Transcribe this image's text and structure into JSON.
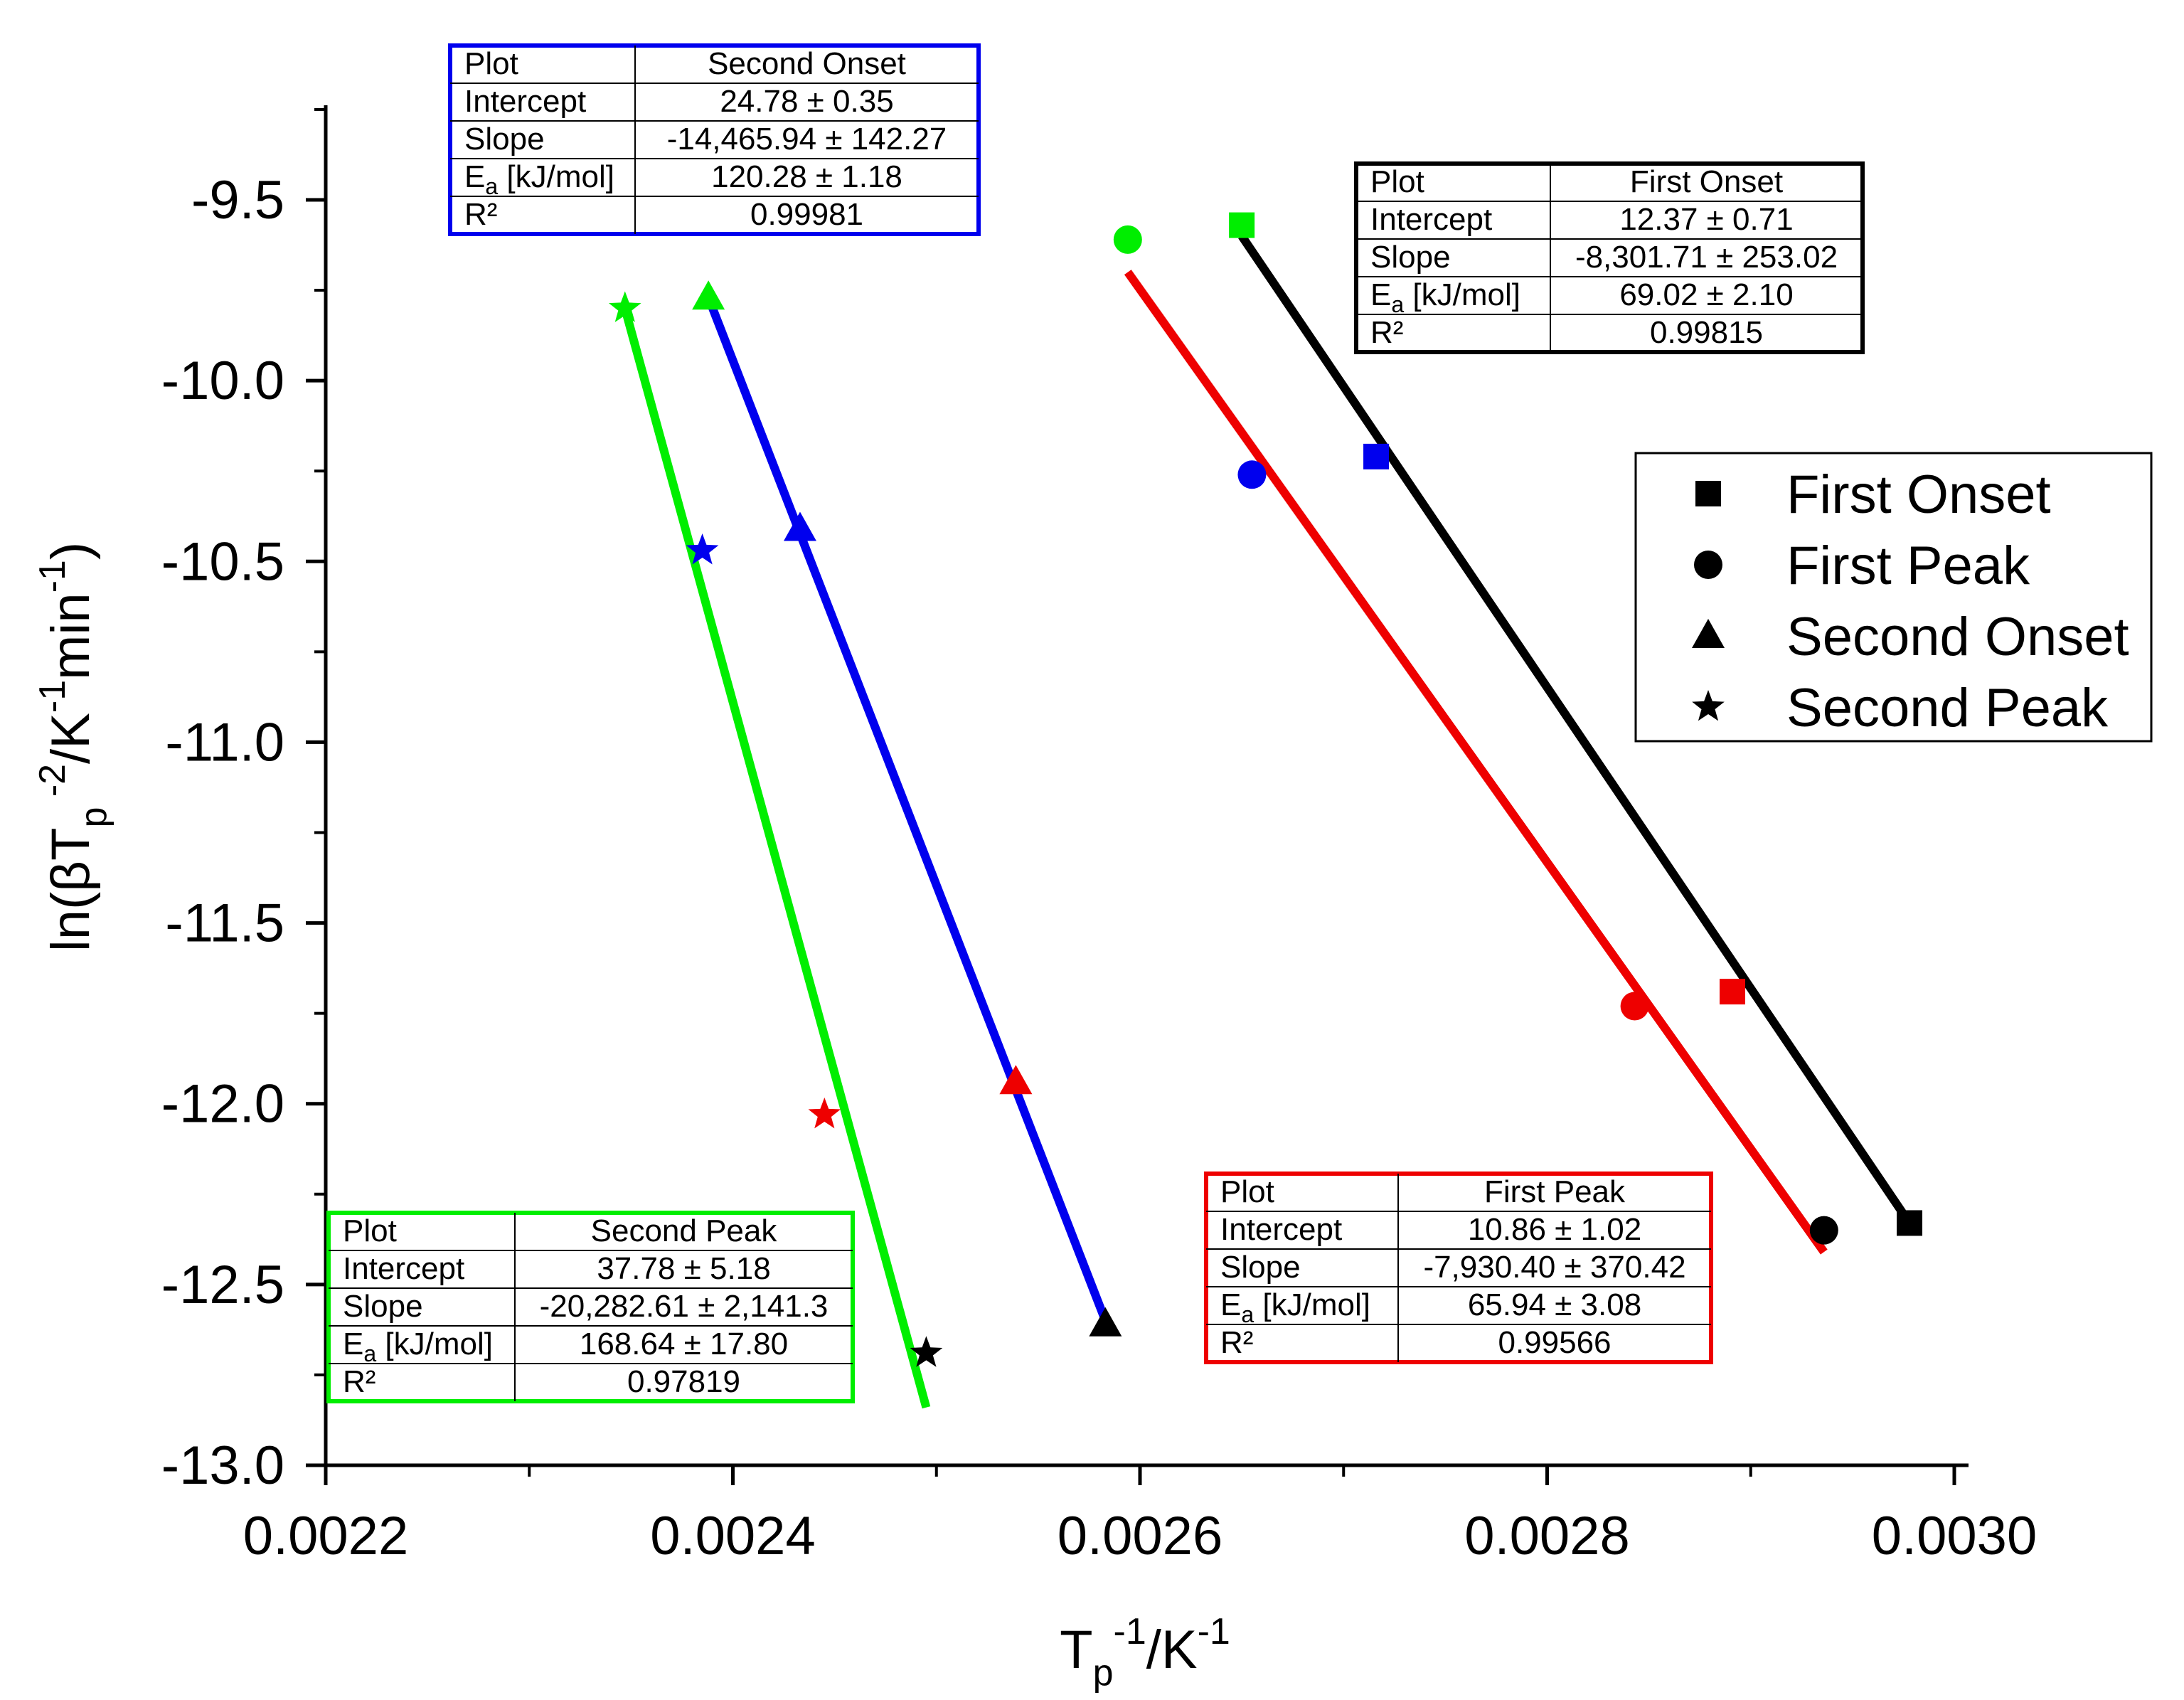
{
  "chart_data": {
    "type": "scatter",
    "title": "",
    "xlabel": {
      "base": "T",
      "sub": "p",
      "sup1": "-1",
      "mid": "/K",
      "sup2": "-1"
    },
    "ylabel": {
      "pre": "ln(βT",
      "sub": "p",
      "sup1": " -2",
      "mid": "/K",
      "sup2": "-1",
      "mid2": "min",
      "sup3": "-1",
      "post": ")"
    },
    "xlim": [
      0.0022,
      0.003
    ],
    "ylim": [
      -13.0,
      -9.2
    ],
    "xticks": [
      0.0022,
      0.0024,
      0.0026,
      0.0028,
      0.003
    ],
    "xtick_labels": [
      "0.0022",
      "0.0024",
      "0.0026",
      "0.0028",
      "0.0030"
    ],
    "yticks": [
      -13.0,
      -12.5,
      -12.0,
      -11.5,
      -11.0,
      -10.5,
      -10.0,
      -9.5
    ],
    "ytick_labels": [
      "-13.0",
      "-12.5",
      "-12.0",
      "-11.5",
      "-11.0",
      "-10.5",
      "-10.0",
      "-9.5"
    ],
    "point_colors": [
      "#00ee00",
      "#0000ee",
      "#ee0000",
      "#000000"
    ],
    "series": [
      {
        "name": "First Onset",
        "marker": "square",
        "line_color": "#000000",
        "x": [
          0.00265,
          0.002716,
          0.002891,
          0.002978
        ],
        "y": [
          -9.57,
          -10.21,
          -11.69,
          -12.33
        ],
        "fit": {
          "x": [
            0.00265,
            0.002978
          ],
          "y": [
            -9.6,
            -12.33
          ]
        }
      },
      {
        "name": "First Peak",
        "marker": "circle",
        "line_color": "#ee0000",
        "x": [
          0.002594,
          0.002655,
          0.002843,
          0.002936
        ],
        "y": [
          -9.61,
          -10.26,
          -11.73,
          -12.35
        ],
        "fit": {
          "x": [
            0.002594,
            0.002936
          ],
          "y": [
            -9.7,
            -12.41
          ]
        }
      },
      {
        "name": "Second Onset",
        "marker": "triangle",
        "line_color": "#0000ee",
        "x": [
          0.002388,
          0.002433,
          0.002539,
          0.002583
        ],
        "y": [
          -9.77,
          -10.41,
          -11.94,
          -12.61
        ],
        "fit": {
          "x": [
            0.002388,
            0.002583
          ],
          "y": [
            -9.77,
            -12.6
          ]
        }
      },
      {
        "name": "Second Peak",
        "marker": "star",
        "line_color": "#00ee00",
        "x": [
          0.002347,
          0.002385,
          0.002445,
          0.002495
        ],
        "y": [
          -9.8,
          -10.47,
          -12.03,
          -12.69
        ],
        "fit": {
          "x": [
            0.002347,
            0.002495
          ],
          "y": [
            -9.8,
            -12.84
          ]
        }
      }
    ],
    "legend": {
      "position": "right",
      "items": [
        "First Onset",
        "First Peak",
        "Second Onset",
        "Second Peak"
      ]
    },
    "fit_tables": [
      {
        "id": "second-onset",
        "border_color": "#0000ee",
        "rows": [
          [
            "Plot",
            "Second Onset"
          ],
          [
            "Intercept",
            "24.78 ± 0.35"
          ],
          [
            "Slope",
            "-14,465.94 ± 142.27"
          ],
          [
            "Ea [kJ/mol]",
            "120.28 ± 1.18"
          ],
          [
            "R²",
            "0.99981"
          ]
        ]
      },
      {
        "id": "first-onset",
        "border_color": "#000000",
        "rows": [
          [
            "Plot",
            "First Onset"
          ],
          [
            "Intercept",
            "12.37 ± 0.71"
          ],
          [
            "Slope",
            "-8,301.71 ± 253.02"
          ],
          [
            "Ea [kJ/mol]",
            "69.02 ± 2.10"
          ],
          [
            "R²",
            "0.99815"
          ]
        ]
      },
      {
        "id": "second-peak",
        "border_color": "#00ee00",
        "rows": [
          [
            "Plot",
            "Second Peak"
          ],
          [
            "Intercept",
            "37.78 ± 5.18"
          ],
          [
            "Slope",
            "-20,282.61 ± 2,141.3"
          ],
          [
            "Ea [kJ/mol]",
            "168.64 ± 17.80"
          ],
          [
            "R²",
            "0.97819"
          ]
        ]
      },
      {
        "id": "first-peak",
        "border_color": "#ee0000",
        "rows": [
          [
            "Plot",
            "First Peak"
          ],
          [
            "Intercept",
            "10.86 ± 1.02"
          ],
          [
            "Slope",
            "-7,930.40 ± 370.42"
          ],
          [
            "Ea [kJ/mol]",
            "65.94 ± 3.08"
          ],
          [
            "R²",
            "0.99566"
          ]
        ]
      }
    ]
  }
}
